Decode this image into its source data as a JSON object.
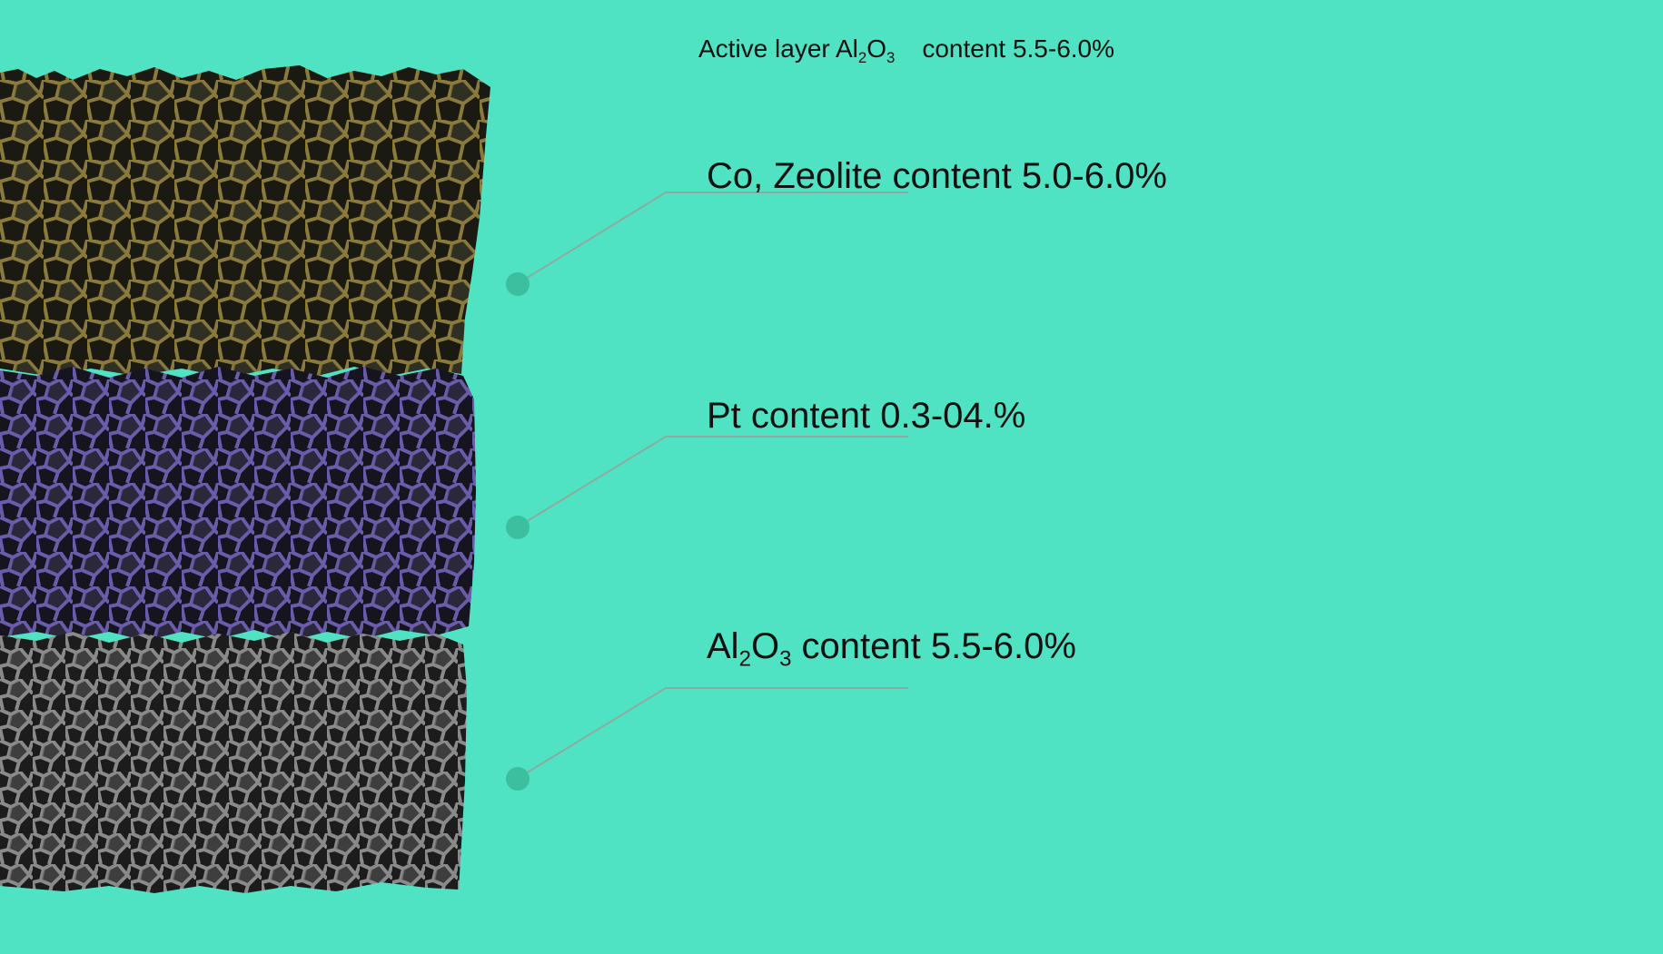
{
  "header": {
    "prefix": "Active layer ",
    "chem_a": "Al",
    "sub_a": "2",
    "chem_b": "O",
    "sub_b": "3",
    "suffix": "content 5.5-6.0%"
  },
  "layers": [
    {
      "label": "Co, Zeolite content 5.0-6.0%",
      "color": "#7c6e36"
    },
    {
      "label": "Pt content 0.3-04.%",
      "color": "#5c4f95"
    },
    {
      "chem_a": "Al",
      "sub_a": "2",
      "chem_b": "O",
      "sub_b": "3",
      "suffix": " content 5.5-6.0%",
      "color": "#7a7a7a"
    }
  ],
  "colors": {
    "background": "#4fe3c3",
    "callout_line": "#8fa9a2",
    "callout_dot": "#3cbf9f"
  }
}
